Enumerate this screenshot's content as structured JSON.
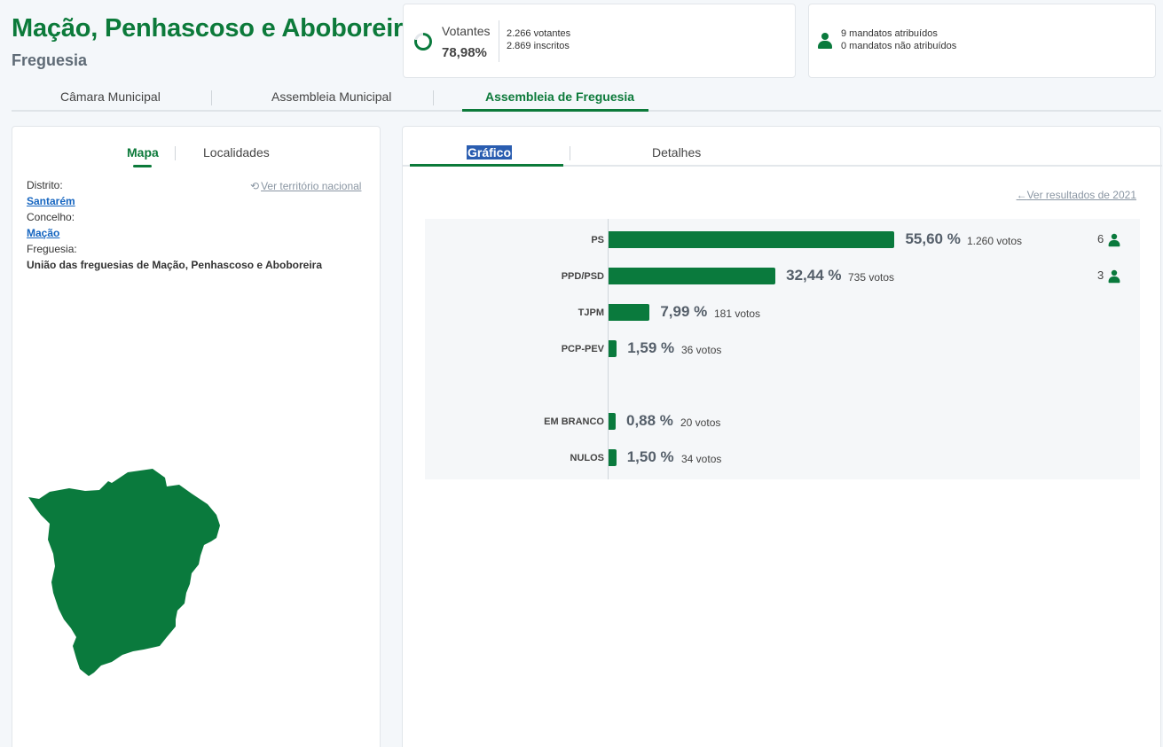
{
  "header": {
    "title": "Mação, Penhascoso e Aboboreira",
    "subtitle": "Freguesia"
  },
  "votantes": {
    "label": "Votantes",
    "percent": "78,98%",
    "percent_value": 78.98,
    "votantes": "2.266 votantes",
    "inscritos": "2.869 inscritos"
  },
  "mandatos": {
    "atribuidos": "9 mandatos atribuídos",
    "nao_atribuidos": "0 mandatos não atribuídos",
    "icon": "person-icon"
  },
  "main_tabs": [
    "Câmara Municipal",
    "Assembleia Municipal",
    "Assembleia de Freguesia"
  ],
  "main_tabs_active": 2,
  "left_panel": {
    "tabs": [
      "Mapa",
      "Localidades"
    ],
    "ver_territorio": "Ver território nacional",
    "distrito_label": "Distrito:",
    "distrito": "Santarém",
    "concelho_label": "Concelho:",
    "concelho": "Mação",
    "freguesia_label": "Freguesia:",
    "freguesia": "União das freguesias de Mação, Penhascoso e Aboboreira"
  },
  "right_panel": {
    "tabs": [
      "Gráfico",
      "Detalhes"
    ],
    "ver_resultados": "Ver resultados de 2021"
  },
  "colors": {
    "brand_green": "#0c7a3a",
    "bar_green": "#0a7a3d",
    "link_blue": "#1565c0"
  },
  "chart_data": {
    "type": "bar",
    "orientation": "horizontal",
    "categories": [
      "PS",
      "PPD/PSD",
      "TJPM",
      "PCP-PEV",
      "EM BRANCO",
      "NULOS"
    ],
    "values": [
      55.6,
      32.44,
      7.99,
      1.59,
      0.88,
      1.5
    ],
    "percent_labels": [
      "55,60 %",
      "32,44 %",
      "7,99 %",
      "1,59 %",
      "0,88 %",
      "1,50 %"
    ],
    "votes": [
      1260,
      735,
      181,
      36,
      20,
      34
    ],
    "vote_labels": [
      "1.260 votos",
      "735 votos",
      "181 votos",
      "36 votos",
      "20 votos",
      "34 votos"
    ],
    "seats": [
      "6",
      "3",
      "",
      "",
      "",
      ""
    ]
  }
}
